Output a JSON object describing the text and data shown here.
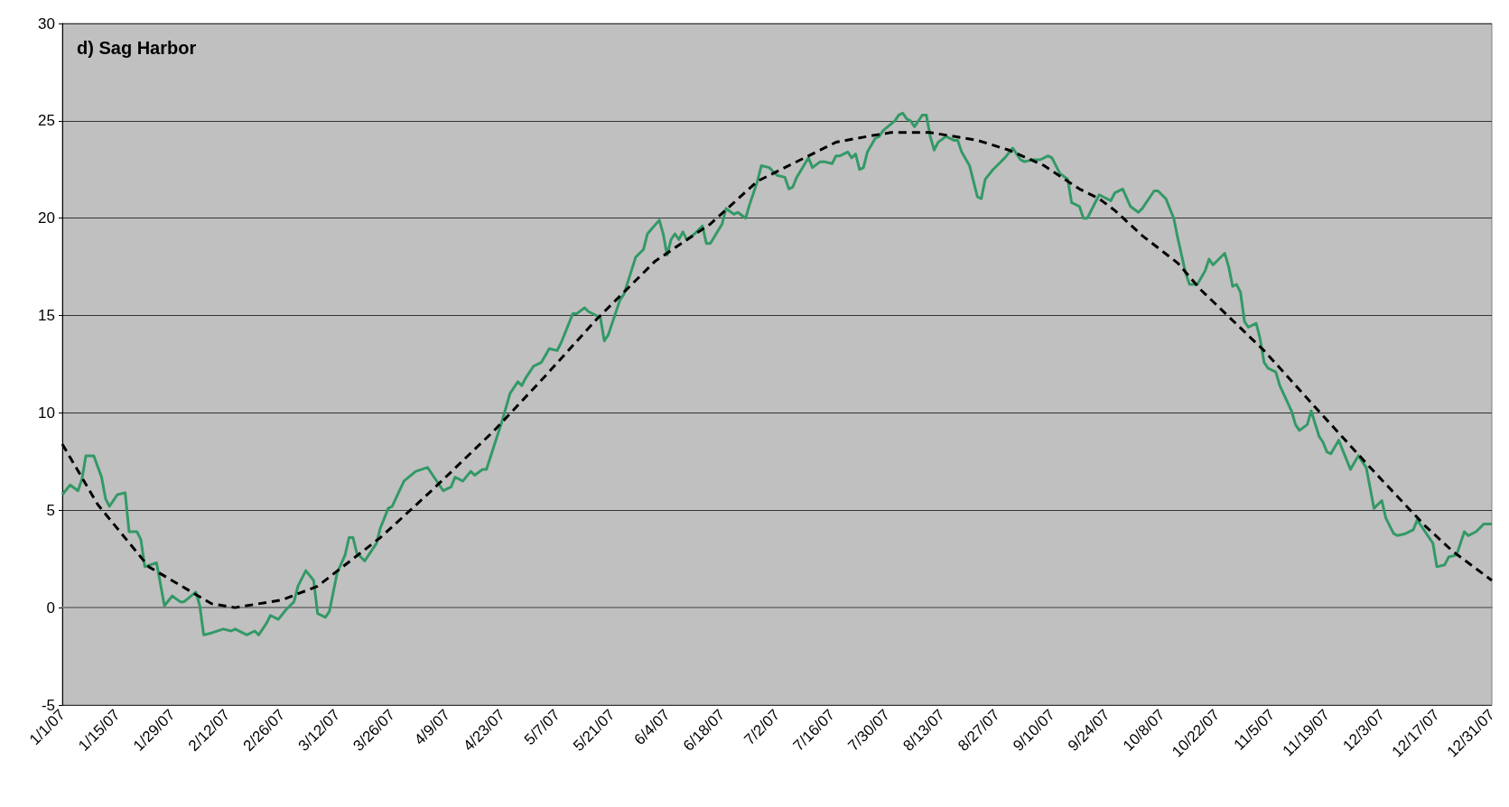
{
  "chart_data": {
    "type": "line",
    "title": "d) Sag Harbor",
    "grid": "y",
    "marker": "none",
    "ylim": [
      -5,
      30
    ],
    "yticks": [
      -5,
      0,
      5,
      10,
      15,
      20,
      25,
      30
    ],
    "xlim": [
      "--01-01",
      "--12-31"
    ],
    "xticks": [
      {
        "value": "--01-01",
        "label": "1/1/07"
      },
      {
        "value": "--01-15",
        "label": "1/15/07"
      },
      {
        "value": "--01-29",
        "label": "1/29/07"
      },
      {
        "value": "--02-12",
        "label": "2/12/07"
      },
      {
        "value": "--02-26",
        "label": "2/26/07"
      },
      {
        "value": "--03-12",
        "label": "3/12/07"
      },
      {
        "value": "--03-26",
        "label": "3/26/07"
      },
      {
        "value": "--04-09",
        "label": "4/9/07"
      },
      {
        "value": "--04-23",
        "label": "4/23/07"
      },
      {
        "value": "--05-07",
        "label": "5/7/07"
      },
      {
        "value": "--05-21",
        "label": "5/21/07"
      },
      {
        "value": "--06-04",
        "label": "6/4/07"
      },
      {
        "value": "--06-18",
        "label": "6/18/07"
      },
      {
        "value": "--07-02",
        "label": "7/2/07"
      },
      {
        "value": "--07-16",
        "label": "7/16/07"
      },
      {
        "value": "--07-30",
        "label": "7/30/07"
      },
      {
        "value": "--08-13",
        "label": "8/13/07"
      },
      {
        "value": "--08-27",
        "label": "8/27/07"
      },
      {
        "value": "--09-10",
        "label": "9/10/07"
      },
      {
        "value": "--09-24",
        "label": "9/24/07"
      },
      {
        "value": "--10-08",
        "label": "10/8/07"
      },
      {
        "value": "--10-22",
        "label": "10/22/07"
      },
      {
        "value": "--11-05",
        "label": "11/5/07"
      },
      {
        "value": "--11-19",
        "label": "11/19/07"
      },
      {
        "value": "--12-03",
        "label": "12/3/07"
      },
      {
        "value": "--12-17",
        "label": "12/17/07"
      },
      {
        "value": "--12-31",
        "label": "12/31/07"
      }
    ],
    "series": [
      {
        "color": "#339966",
        "x": [
          "--01-01",
          "--01-03",
          "--01-05",
          "--01-06",
          "--01-07",
          "--01-09",
          "--01-11",
          "--01-12",
          "--01-13",
          "--01-15",
          "--01-17",
          "--01-18",
          "--01-20",
          "--01-21",
          "--01-22",
          "--01-25",
          "--01-27",
          "--01-29",
          "--01-31",
          "--02-01",
          "--02-04",
          "--02-05",
          "--02-06",
          "--02-08",
          "--02-11",
          "--02-13",
          "--02-14",
          "--02-17",
          "--02-19",
          "--02-20",
          "--02-22",
          "--02-23",
          "--02-25",
          "--02-27",
          "--03-01",
          "--03-02",
          "--03-04",
          "--03-06",
          "--03-07",
          "--03-09",
          "--03-10",
          "--03-12",
          "--03-14",
          "--03-15",
          "--03-16",
          "--03-17",
          "--03-19",
          "--03-22",
          "--03-23",
          "--03-25",
          "--03-26",
          "--03-29",
          "--04-01",
          "--04-04",
          "--04-06",
          "--04-08",
          "--04-10",
          "--04-11",
          "--04-13",
          "--04-15",
          "--04-16",
          "--04-18",
          "--04-19",
          "--04-23",
          "--04-25",
          "--04-27",
          "--04-28",
          "--04-29",
          "--05-01",
          "--05-03",
          "--05-05",
          "--05-07",
          "--05-08",
          "--05-11",
          "--05-12",
          "--05-14",
          "--05-15",
          "--05-18",
          "--05-19",
          "--05-20",
          "--05-23",
          "--05-24",
          "--05-27",
          "--05-29",
          "--05-30",
          "--06-02",
          "--06-03",
          "--06-04",
          "--06-05",
          "--06-06",
          "--06-07",
          "--06-08",
          "--06-09",
          "--06-11",
          "--06-13",
          "--06-14",
          "--06-15",
          "--06-18",
          "--06-19",
          "--06-21",
          "--06-22",
          "--06-24",
          "--06-25",
          "--06-27",
          "--06-28",
          "--06-30",
          "--07-01",
          "--07-02",
          "--07-04",
          "--07-05",
          "--07-06",
          "--07-07",
          "--07-10",
          "--07-11",
          "--07-13",
          "--07-14",
          "--07-16",
          "--07-17",
          "--07-18",
          "--07-20",
          "--07-21",
          "--07-22",
          "--07-23",
          "--07-24",
          "--07-25",
          "--07-27",
          "--07-28",
          "--07-29",
          "--08-01",
          "--08-02",
          "--08-03",
          "--08-04",
          "--08-05",
          "--08-06",
          "--08-08",
          "--08-09",
          "--08-10",
          "--08-11",
          "--08-12",
          "--08-14",
          "--08-16",
          "--08-17",
          "--08-18",
          "--08-20",
          "--08-22",
          "--08-23",
          "--08-24",
          "--08-26",
          "--08-27",
          "--08-29",
          "--08-31",
          "--09-02",
          "--09-03",
          "--09-05",
          "--09-07",
          "--09-09",
          "--09-10",
          "--09-12",
          "--09-14",
          "--09-15",
          "--09-17",
          "--09-18",
          "--09-19",
          "--09-21",
          "--09-22",
          "--09-23",
          "--09-25",
          "--09-26",
          "--09-28",
          "--09-30",
          "--10-02",
          "--10-03",
          "--10-06",
          "--10-07",
          "--10-09",
          "--10-11",
          "--10-12",
          "--10-14",
          "--10-15",
          "--10-17",
          "--10-19",
          "--10-20",
          "--10-21",
          "--10-24",
          "--10-25",
          "--10-26",
          "--10-27",
          "--10-28",
          "--10-29",
          "--10-30",
          "--11-01",
          "--11-02",
          "--11-03",
          "--11-04",
          "--11-06",
          "--11-07",
          "--11-10",
          "--11-11",
          "--11-12",
          "--11-14",
          "--11-15",
          "--11-17",
          "--11-18",
          "--11-19",
          "--11-20",
          "--11-22",
          "--11-25",
          "--11-27",
          "--11-29",
          "--12-01",
          "--12-03",
          "--12-04",
          "--12-06",
          "--12-07",
          "--12-09",
          "--12-11",
          "--12-12",
          "--12-14",
          "--12-16",
          "--12-17",
          "--12-19",
          "--12-20",
          "--12-22",
          "--12-24",
          "--12-25",
          "--12-27",
          "--12-29",
          "--12-31"
        ],
        "values": [
          5.8,
          6.3,
          6.0,
          6.6,
          7.8,
          7.8,
          6.7,
          5.6,
          5.2,
          5.8,
          5.9,
          3.9,
          3.9,
          3.5,
          2.1,
          2.3,
          0.1,
          0.6,
          0.3,
          0.3,
          0.8,
          0.1,
          -1.4,
          -1.3,
          -1.1,
          -1.2,
          -1.1,
          -1.4,
          -1.2,
          -1.4,
          -0.8,
          -0.4,
          -0.6,
          -0.1,
          0.3,
          1.1,
          1.9,
          1.4,
          -0.3,
          -0.5,
          -0.2,
          1.8,
          2.7,
          3.6,
          3.6,
          2.8,
          2.4,
          3.3,
          4.1,
          5.1,
          5.2,
          6.5,
          7.0,
          7.2,
          6.6,
          6.0,
          6.2,
          6.7,
          6.5,
          7.0,
          6.8,
          7.1,
          7.1,
          9.6,
          11.0,
          11.6,
          11.4,
          11.8,
          12.4,
          12.6,
          13.3,
          13.2,
          13.6,
          15.1,
          15.1,
          15.4,
          15.2,
          14.9,
          13.7,
          14.0,
          15.8,
          16.1,
          18.0,
          18.4,
          19.2,
          19.9,
          19.2,
          18.1,
          18.9,
          19.2,
          18.9,
          19.3,
          18.9,
          19.2,
          19.6,
          18.7,
          18.7,
          19.7,
          20.5,
          20.2,
          20.3,
          20.0,
          20.7,
          21.9,
          22.7,
          22.6,
          22.4,
          22.2,
          22.1,
          21.5,
          21.6,
          22.1,
          23.1,
          22.6,
          22.9,
          22.9,
          22.8,
          23.2,
          23.2,
          23.4,
          23.1,
          23.3,
          22.5,
          22.6,
          23.4,
          24.1,
          24.2,
          24.5,
          25.0,
          25.3,
          25.4,
          25.1,
          25.0,
          24.7,
          25.3,
          25.3,
          24.2,
          23.5,
          23.9,
          24.2,
          24.0,
          24.0,
          23.4,
          22.7,
          21.1,
          21.0,
          22.0,
          22.5,
          22.7,
          23.1,
          23.6,
          23.0,
          22.9,
          23.0,
          23.0,
          23.2,
          23.1,
          22.3,
          22.0,
          20.8,
          20.6,
          20.0,
          20.0,
          20.8,
          21.2,
          21.1,
          20.9,
          21.3,
          21.5,
          20.6,
          20.3,
          20.5,
          21.4,
          21.4,
          21.0,
          20.0,
          19.0,
          17.2,
          16.6,
          16.6,
          17.3,
          17.9,
          17.6,
          18.2,
          17.5,
          16.5,
          16.6,
          16.2,
          14.7,
          14.4,
          14.6,
          13.8,
          12.6,
          12.3,
          12.1,
          11.4,
          10.1,
          9.4,
          9.1,
          9.4,
          10.1,
          8.8,
          8.5,
          8.0,
          7.9,
          8.6,
          7.1,
          7.8,
          7.2,
          5.1,
          5.5,
          4.6,
          3.8,
          3.7,
          3.8,
          4.0,
          4.5,
          3.9,
          3.3,
          2.1,
          2.2,
          2.6,
          2.7,
          3.9,
          3.7,
          3.9,
          4.3,
          4.3
        ]
      },
      {
        "color": "#000000",
        "line_style": "dashed",
        "x": [
          "--01-01",
          "--01-10",
          "--01-23",
          "--02-08",
          "--02-14",
          "--02-26",
          "--03-07",
          "--03-23",
          "--04-05",
          "--04-21",
          "--05-04",
          "--05-17",
          "--06-01",
          "--06-15",
          "--06-27",
          "--07-09",
          "--07-17",
          "--07-25",
          "--07-31",
          "--08-04",
          "--08-10",
          "--08-22",
          "--08-30",
          "--09-08",
          "--09-17",
          "--09-22",
          "--09-26",
          "--10-03",
          "--10-12",
          "--10-18",
          "--11-03",
          "--11-16",
          "--11-30",
          "--12-14",
          "--12-21",
          "--12-31"
        ],
        "values": [
          8.4,
          5.3,
          2.1,
          0.2,
          0.0,
          0.4,
          1.1,
          3.6,
          6.0,
          9.1,
          11.9,
          14.8,
          17.8,
          19.7,
          21.9,
          23.1,
          23.9,
          24.2,
          24.4,
          24.4,
          24.4,
          24.0,
          23.5,
          22.7,
          21.5,
          21.0,
          20.4,
          19.1,
          17.7,
          16.3,
          13.2,
          10.3,
          7.2,
          4.2,
          2.9,
          1.4
        ]
      }
    ]
  }
}
